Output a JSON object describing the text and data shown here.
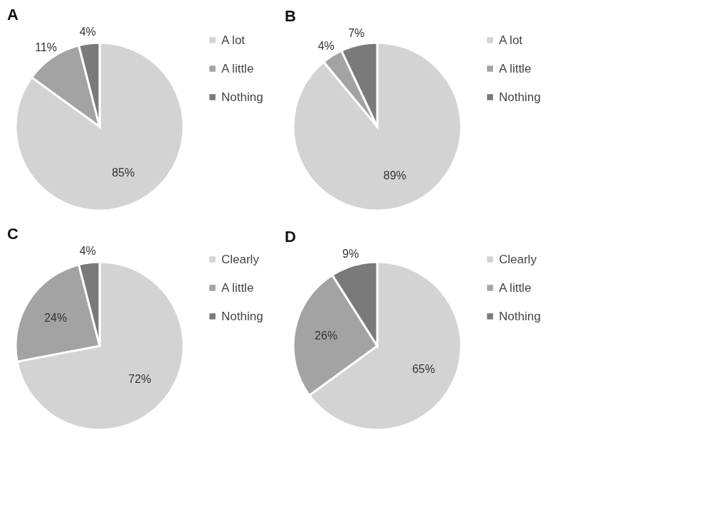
{
  "chart_data": [
    {
      "type": "pie",
      "title": "A",
      "categories": [
        "A lot",
        "A little",
        "Nothing"
      ],
      "values": [
        85,
        11,
        4
      ],
      "value_labels": [
        "85%",
        "11%",
        "4%"
      ],
      "colors": [
        "#d3d3d3",
        "#a3a3a3",
        "#7a7a7a"
      ],
      "legend": "right"
    },
    {
      "type": "pie",
      "title": "B",
      "categories": [
        "A lot",
        "A little",
        "Nothing"
      ],
      "values": [
        89,
        4,
        7
      ],
      "value_labels": [
        "89%",
        "4%",
        "7%"
      ],
      "colors": [
        "#d3d3d3",
        "#a3a3a3",
        "#7a7a7a"
      ],
      "legend": "right"
    },
    {
      "type": "pie",
      "title": "C",
      "categories": [
        "Clearly",
        "A little",
        "Nothing"
      ],
      "values": [
        72,
        24,
        4
      ],
      "value_labels": [
        "72%",
        "24%",
        "4%"
      ],
      "colors": [
        "#d3d3d3",
        "#a3a3a3",
        "#7a7a7a"
      ],
      "legend": "right"
    },
    {
      "type": "pie",
      "title": "D",
      "categories": [
        "Clearly",
        "A little",
        "Nothing"
      ],
      "values": [
        65,
        26,
        9
      ],
      "value_labels": [
        "65%",
        "26%",
        "9%"
      ],
      "colors": [
        "#d3d3d3",
        "#a3a3a3",
        "#7a7a7a"
      ],
      "legend": "right"
    }
  ]
}
